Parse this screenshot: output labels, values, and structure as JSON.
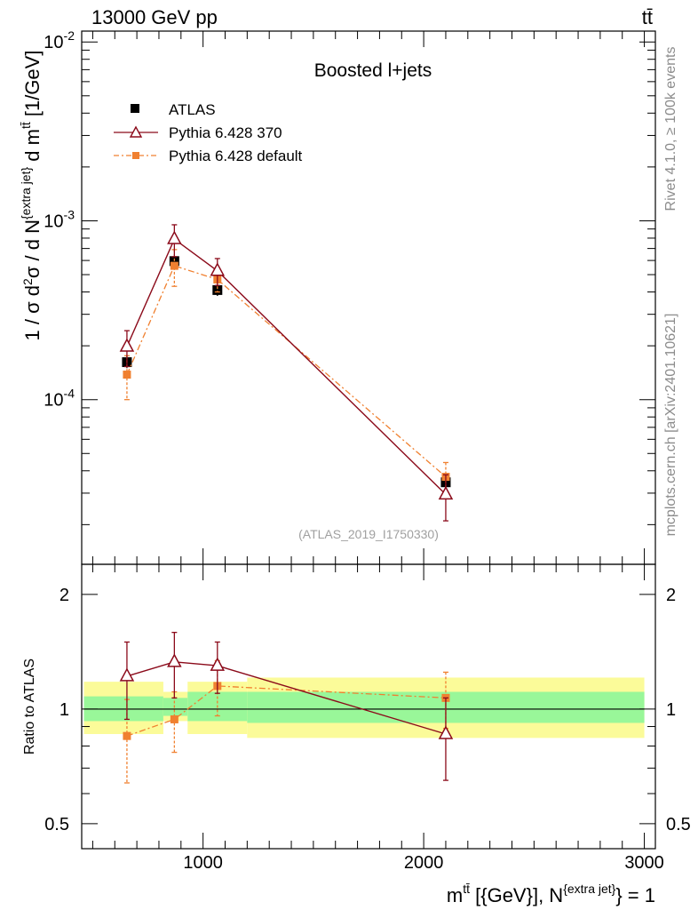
{
  "header": {
    "energy_label": "13000 GeV pp",
    "process_label": "tt̄"
  },
  "side_labels": {
    "rivet": "Rivet 4.1.0, ≥ 100k events",
    "mcplots": "mcplots.cern.ch [arXiv:2401.10621]"
  },
  "colors": {
    "atlas": "#000000",
    "pythia370": "#8b0a1a",
    "pythiadef": "#f08030",
    "band_inner": "#99f799",
    "band_outer": "#fbfb99"
  },
  "chart_data": [
    {
      "type": "scatter",
      "title": "Boosted l+jets",
      "watermark": "(ATLAS_2019_I1750330)",
      "ylabel": "1 / σ d²σ / d N^{extra jet} d m^{tt̄} [1/GeV]",
      "yscale": "log",
      "ylim": [
        1.2e-05,
        0.0115
      ],
      "xlim": [
        450,
        3050
      ],
      "yticks": [
        {
          "v": 0.0001,
          "base": "10",
          "exp": "-4"
        },
        {
          "v": 0.001,
          "base": "10",
          "exp": "-3"
        },
        {
          "v": 0.01,
          "base": "10",
          "exp": "-2"
        }
      ],
      "legend": [
        "ATLAS",
        "Pythia 6.428 370",
        "Pythia 6.428 default"
      ],
      "bins": [
        [
          460,
          820
        ],
        [
          820,
          930
        ],
        [
          930,
          1200
        ],
        [
          1200,
          3000
        ]
      ],
      "series": [
        {
          "name": "ATLAS",
          "x": [
            655,
            870,
            1065,
            2100
          ],
          "values": [
            0.000162,
            0.000595,
            0.00041,
            3.45e-05
          ],
          "err": [
            1.2e-05,
            4e-05,
            3e-05,
            2.5e-06
          ]
        },
        {
          "name": "Pythia 6.428 370",
          "x": [
            655,
            870,
            1065,
            2100
          ],
          "values": [
            0.000198,
            0.00079,
            0.000525,
            2.95e-05
          ],
          "err": [
            4.5e-05,
            0.00016,
            9e-05,
            8.5e-06
          ]
        },
        {
          "name": "Pythia 6.428 default",
          "x": [
            655,
            870,
            1065,
            2100
          ],
          "values": [
            0.000138,
            0.00056,
            0.00047,
            3.7e-05
          ],
          "err": [
            3.8e-05,
            0.00013,
            7e-05,
            7.5e-06
          ]
        }
      ]
    },
    {
      "type": "scatter",
      "ylabel": "Ratio to ATLAS",
      "xlabel": "m^{tt̄} [{GeV}], N^{extra jet} = 1",
      "yscale": "log",
      "ylim": [
        0.43,
        2.4
      ],
      "xlim": [
        450,
        3050
      ],
      "yticks": [
        {
          "v": 0.5,
          "label": "0.5"
        },
        {
          "v": 1,
          "label": "1"
        },
        {
          "v": 2,
          "label": "2"
        }
      ],
      "xticks": [
        {
          "v": 1000,
          "label": "1000"
        },
        {
          "v": 2000,
          "label": "2000"
        },
        {
          "v": 3000,
          "label": "3000"
        }
      ],
      "bands": [
        {
          "x": [
            460,
            820
          ],
          "inner": [
            0.93,
            1.08
          ],
          "outer": [
            0.86,
            1.18
          ]
        },
        {
          "x": [
            820,
            930
          ],
          "inner": [
            0.96,
            1.07
          ],
          "outer": [
            0.93,
            1.11
          ]
        },
        {
          "x": [
            930,
            1200
          ],
          "inner": [
            0.93,
            1.11
          ],
          "outer": [
            0.86,
            1.18
          ]
        },
        {
          "x": [
            1200,
            3000
          ],
          "inner": [
            0.92,
            1.11
          ],
          "outer": [
            0.84,
            1.21
          ]
        }
      ],
      "series": [
        {
          "name": "Pythia 6.428 370",
          "x": [
            655,
            870,
            1065,
            2100
          ],
          "values": [
            1.22,
            1.33,
            1.3,
            0.86
          ],
          "err": [
            0.28,
            0.26,
            0.2,
            0.21
          ]
        },
        {
          "name": "Pythia 6.428 default",
          "x": [
            655,
            870,
            1065,
            2100
          ],
          "values": [
            0.85,
            0.94,
            1.15,
            1.07
          ],
          "err": [
            0.21,
            0.17,
            0.19,
            0.18
          ]
        }
      ]
    }
  ]
}
